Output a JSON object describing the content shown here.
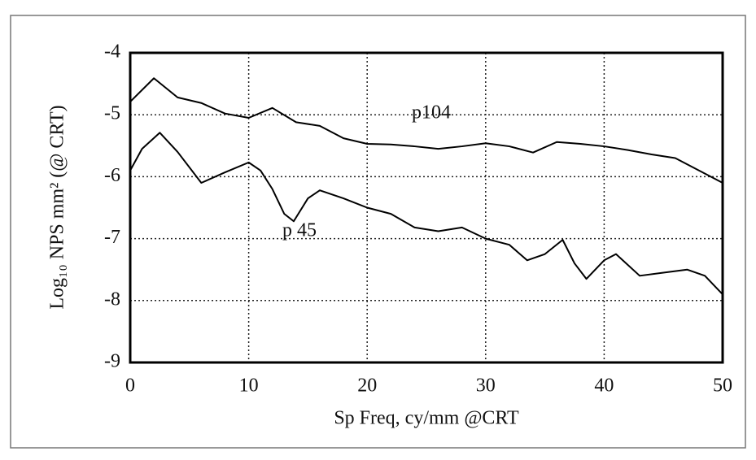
{
  "chart_data": {
    "type": "line",
    "xlabel": "Sp Freq, cy/mm @CRT",
    "ylabel": "Log₁₀ NPS mm² (@ CRT)",
    "xlim": [
      0,
      50
    ],
    "xticks": [
      0,
      10,
      20,
      30,
      40,
      50
    ],
    "ylim": [
      -9,
      -4
    ],
    "yticks": [
      -4,
      -5,
      -6,
      -7,
      -8,
      -9
    ],
    "grid": true,
    "series": [
      {
        "name": "p104",
        "color": "#000000",
        "x": [
          0,
          2,
          4,
          6,
          8,
          10,
          12,
          14,
          16,
          18,
          20,
          22,
          24,
          26,
          28,
          30,
          32,
          34,
          36,
          38,
          40,
          42,
          44,
          46,
          48,
          50
        ],
        "values": [
          -4.79,
          -4.41,
          -4.72,
          -4.81,
          -4.98,
          -5.05,
          -4.89,
          -5.12,
          -5.18,
          -5.38,
          -5.47,
          -5.48,
          -5.51,
          -5.55,
          -5.51,
          -5.46,
          -5.51,
          -5.61,
          -5.44,
          -5.47,
          -5.51,
          -5.57,
          -5.64,
          -5.7,
          -5.9,
          -6.1
        ]
      },
      {
        "name": "p 45",
        "color": "#000000",
        "x": [
          0,
          1,
          2.5,
          4,
          6,
          8,
          10,
          11,
          12,
          13,
          13.8,
          15,
          16,
          18,
          20,
          22,
          24,
          26,
          28,
          30,
          32,
          33.5,
          35,
          36.5,
          37.5,
          38.5,
          40,
          41,
          43,
          45,
          47,
          48.5,
          50
        ],
        "values": [
          -5.9,
          -5.55,
          -5.29,
          -5.6,
          -6.1,
          -5.93,
          -5.77,
          -5.9,
          -6.2,
          -6.6,
          -6.72,
          -6.35,
          -6.22,
          -6.35,
          -6.5,
          -6.6,
          -6.82,
          -6.88,
          -6.82,
          -7.0,
          -7.1,
          -7.35,
          -7.25,
          -7.02,
          -7.4,
          -7.65,
          -7.35,
          -7.25,
          -7.6,
          -7.55,
          -7.5,
          -7.6,
          -7.9
        ]
      }
    ]
  }
}
